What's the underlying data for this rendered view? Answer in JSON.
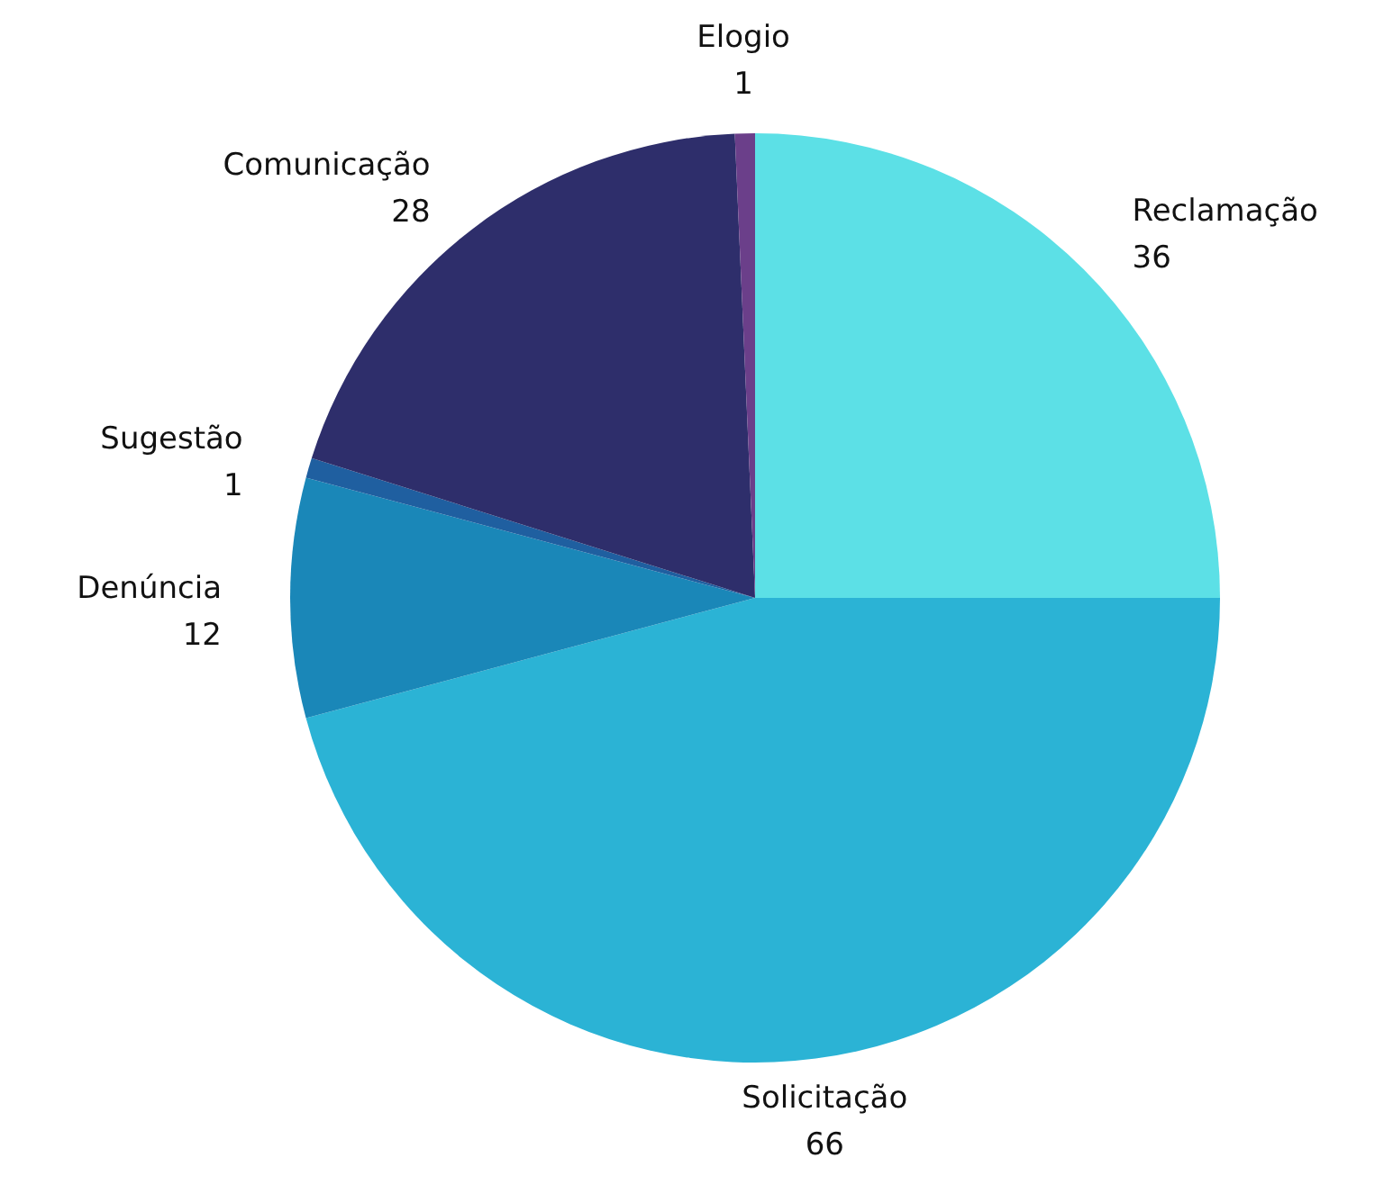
{
  "chart_data": {
    "type": "pie",
    "categories": [
      "Reclamação",
      "Solicitação",
      "Denúncia",
      "Sugestão",
      "Comunicação",
      "Elogio"
    ],
    "values": [
      36,
      66,
      12,
      1,
      28,
      1
    ],
    "colors": [
      "#5ce0e6",
      "#2bb3d5",
      "#1a87b8",
      "#1f5fa0",
      "#2e2e6b",
      "#6b3f8a"
    ],
    "data_labels": true
  }
}
